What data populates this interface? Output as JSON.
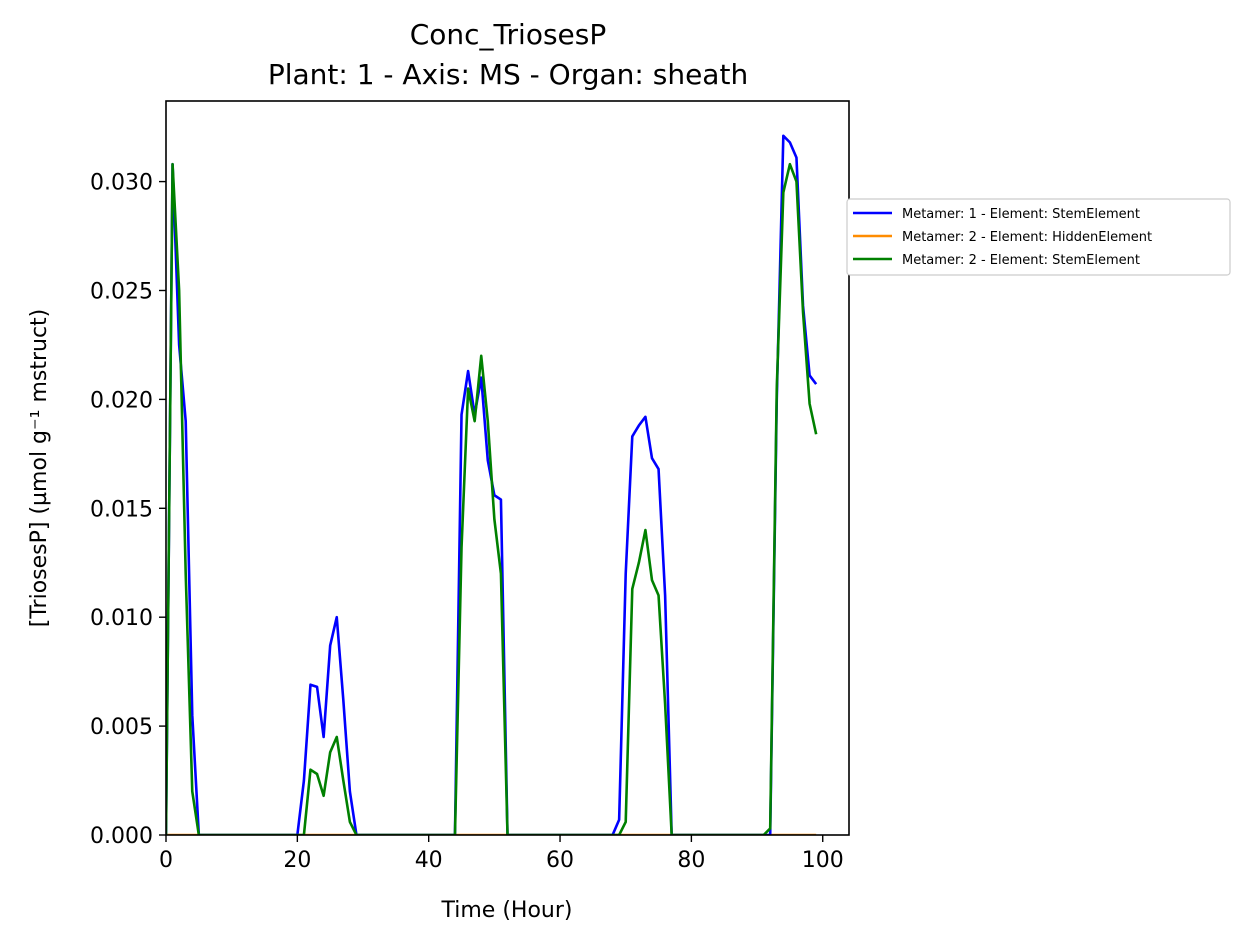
{
  "chart_data": {
    "type": "line",
    "title": "Conc_TriosesP",
    "subtitle": "Plant: 1 - Axis: MS - Organ: sheath",
    "xlabel": "Time (Hour)",
    "ylabel": "[TriosesP] (µmol g⁻¹ mstruct)",
    "xlim": [
      0,
      104
    ],
    "ylim": [
      0,
      0.0337
    ],
    "xticks": [
      0,
      20,
      40,
      60,
      80,
      100
    ],
    "xtick_labels": [
      "0",
      "20",
      "40",
      "60",
      "80",
      "100"
    ],
    "yticks": [
      0,
      0.005,
      0.01,
      0.015,
      0.02,
      0.025,
      0.03
    ],
    "ytick_labels": [
      "0.000",
      "0.005",
      "0.010",
      "0.015",
      "0.020",
      "0.025",
      "0.030"
    ],
    "grid": false,
    "legend_position": "right, outside",
    "series": [
      {
        "name": "Metamer: 1 - Element: StemElement",
        "color": "#0000ff",
        "x": [
          0,
          1,
          2,
          3,
          4,
          5,
          20,
          21,
          22,
          23,
          24,
          25,
          26,
          27,
          28,
          29,
          44,
          45,
          46,
          47,
          48,
          49,
          50,
          51,
          52,
          68,
          69,
          70,
          71,
          72,
          73,
          74,
          75,
          76,
          77,
          92,
          93,
          94,
          95,
          96,
          97,
          98,
          99
        ],
        "y": [
          0,
          0.0308,
          0.0225,
          0.019,
          0.0055,
          0,
          0,
          0.0025,
          0.0069,
          0.0068,
          0.0045,
          0.0087,
          0.01,
          0.0062,
          0.002,
          0,
          0,
          0.0193,
          0.0213,
          0.0193,
          0.021,
          0.0172,
          0.0156,
          0.0154,
          0,
          0,
          0.0007,
          0.012,
          0.0183,
          0.0188,
          0.0192,
          0.0173,
          0.0168,
          0.011,
          0,
          0,
          0.02,
          0.0321,
          0.0318,
          0.0311,
          0.0243,
          0.0211,
          0.0207
        ]
      },
      {
        "name": "Metamer: 2 - Element: HiddenElement",
        "color": "#ff8c00",
        "x": [
          0,
          99
        ],
        "y": [
          0,
          0
        ]
      },
      {
        "name": "Metamer: 2 - Element: StemElement",
        "color": "#008000",
        "x": [
          0,
          1,
          2,
          3,
          4,
          5,
          21,
          22,
          23,
          24,
          25,
          26,
          27,
          28,
          29,
          44,
          45,
          46,
          47,
          48,
          49,
          50,
          51,
          52,
          69,
          70,
          71,
          72,
          73,
          74,
          75,
          76,
          77,
          91,
          92,
          93,
          94,
          95,
          96,
          97,
          98,
          99
        ],
        "y": [
          0,
          0.0308,
          0.025,
          0.012,
          0.002,
          0,
          0,
          0.003,
          0.0028,
          0.0018,
          0.0038,
          0.0045,
          0.0025,
          0.0006,
          0,
          0,
          0.0132,
          0.0205,
          0.019,
          0.022,
          0.019,
          0.0145,
          0.012,
          0,
          0,
          0.0006,
          0.0113,
          0.0125,
          0.014,
          0.0117,
          0.011,
          0.006,
          0,
          0,
          0.0003,
          0.0205,
          0.0295,
          0.0308,
          0.03,
          0.024,
          0.0198,
          0.0184
        ]
      }
    ]
  }
}
